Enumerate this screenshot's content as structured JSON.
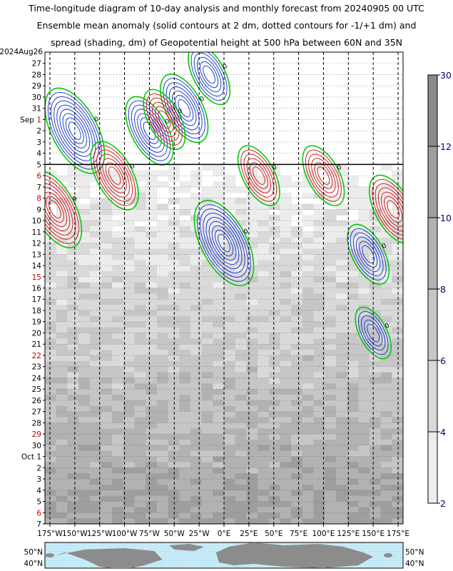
{
  "title": {
    "line1": "Time-longitude diagram of 10-day analysis and monthly forecast from 20240905 00 UTC",
    "line2": "Ensemble mean anomaly (solid contours at 2 dm, dotted contours for -1/+1 dm) and",
    "line3": "spread (shading, dm) of Geopotential height at 500 hPa between 60N and 35N"
  },
  "chart_data": {
    "type": "heatmap",
    "title": "Time-longitude diagram of 10-day analysis and monthly forecast from 20240905 00 UTC",
    "x_axis": {
      "range": [
        -180,
        180
      ],
      "ticks": [
        -175,
        -150,
        -125,
        -100,
        -75,
        -50,
        -25,
        0,
        25,
        50,
        75,
        100,
        125,
        150,
        175
      ],
      "tick_labels": [
        "175°W",
        "150°W",
        "125°W",
        "100°W",
        "75°W",
        "50°W",
        "25°W",
        "0°E",
        "25°E",
        "50°E",
        "75°E",
        "100°E",
        "125°E",
        "150°E",
        "175°E"
      ]
    },
    "y_axis": {
      "start": "2024-08-26",
      "end": "2024-10-07",
      "top_label": "2024Aug26",
      "tick_labels": [
        "27",
        "28",
        "29",
        "30",
        "31",
        "Sep 1",
        "2",
        "3",
        "4",
        "5",
        "6",
        "7",
        "8",
        "9",
        "10",
        "11",
        "12",
        "13",
        "14",
        "15",
        "16",
        "17",
        "18",
        "19",
        "20",
        "21",
        "22",
        "23",
        "24",
        "25",
        "26",
        "27",
        "28",
        "29",
        "30",
        "Oct 1",
        "2",
        "3",
        "4",
        "5",
        "6",
        "7"
      ],
      "weekend_labels": [
        "Sep 1",
        "8",
        "15",
        "22",
        "29",
        "6"
      ],
      "weekend_color": "#cc0000",
      "analysis_forecast_split": "Sep 5"
    },
    "colorbar": {
      "levels": [
        2,
        4,
        6,
        8,
        10,
        12,
        30
      ],
      "label_color": "#000080",
      "shades": [
        "#ececec",
        "#d9d9d9",
        "#c6c6c6",
        "#b2b2b2",
        "#9e9e9e",
        "#8a8a8a"
      ]
    },
    "contour_colors": {
      "positive": "#d02020",
      "negative": "#2040d0",
      "zero": "#00cc00"
    },
    "zero_contour_label": "0",
    "positive_label_value": "8",
    "features": [
      {
        "kind": "negative",
        "lon": -150,
        "date": "2024-09-02",
        "peak_dm": -16
      },
      {
        "kind": "negative",
        "lon": -75,
        "date": "2024-09-02",
        "peak_dm": -12
      },
      {
        "kind": "negative",
        "lon": -40,
        "date": "2024-08-31",
        "peak_dm": -12
      },
      {
        "kind": "negative",
        "lon": -15,
        "date": "2024-08-28",
        "peak_dm": -10
      },
      {
        "kind": "negative",
        "lon": 0,
        "date": "2024-09-12",
        "peak_dm": -16
      },
      {
        "kind": "negative",
        "lon": 145,
        "date": "2024-09-13",
        "peak_dm": -10
      },
      {
        "kind": "negative",
        "lon": 150,
        "date": "2024-09-20",
        "peak_dm": -8
      },
      {
        "kind": "positive",
        "lon": -170,
        "date": "2024-09-09",
        "peak_dm": 14
      },
      {
        "kind": "positive",
        "lon": -110,
        "date": "2024-09-06",
        "peak_dm": 12
      },
      {
        "kind": "positive",
        "lon": -60,
        "date": "2024-09-01",
        "peak_dm": 10
      },
      {
        "kind": "positive",
        "lon": 35,
        "date": "2024-09-06",
        "peak_dm": 10
      },
      {
        "kind": "positive",
        "lon": 100,
        "date": "2024-09-06",
        "peak_dm": 10
      },
      {
        "kind": "positive",
        "lon": 170,
        "date": "2024-09-09",
        "peak_dm": 12
      }
    ],
    "map": {
      "lat_labels": [
        "50°N",
        "40°N"
      ]
    }
  }
}
